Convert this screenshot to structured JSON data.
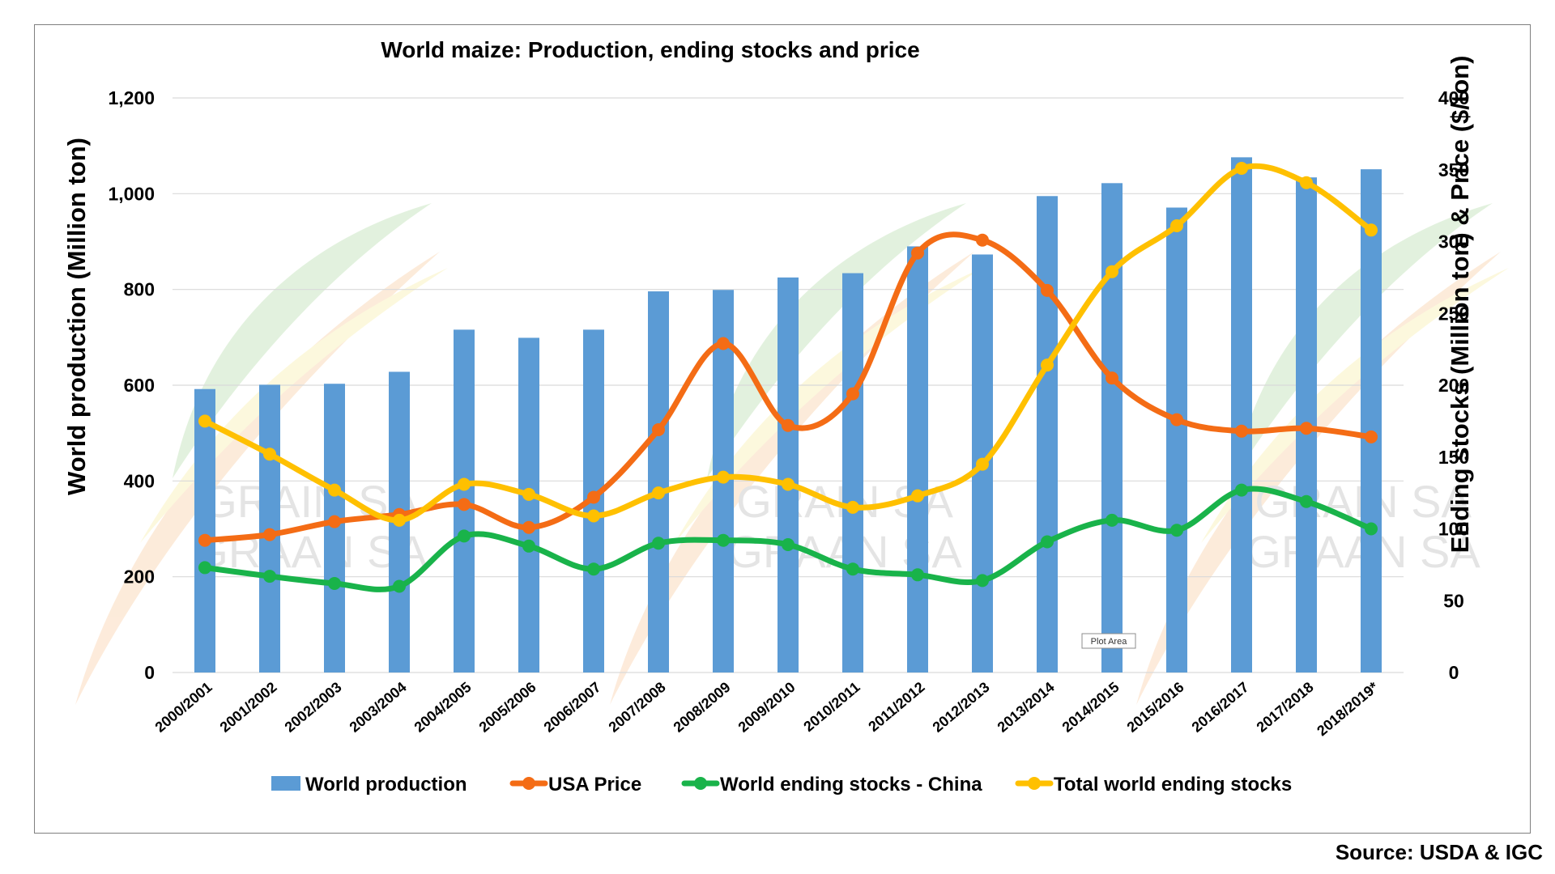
{
  "chart_data": {
    "type": "bar",
    "title": "World maize: Production, ending stocks and price",
    "ylabel_left": "World production (Million ton)",
    "ylabel_right": "Ending stocks (Million ton) & Price ($/ton)",
    "ylim_left": [
      0,
      1200
    ],
    "yticks_left": [
      0,
      200,
      400,
      600,
      800,
      1000,
      1200
    ],
    "ytick_labels_left": [
      "0",
      "200",
      "400",
      "600",
      "800",
      "1,000",
      "1,200"
    ],
    "ylim_right": [
      0,
      400
    ],
    "yticks_right": [
      0,
      50,
      100,
      150,
      200,
      250,
      300,
      350,
      400
    ],
    "ytick_labels_right": [
      "0",
      "50",
      "100",
      "150",
      "200",
      "250",
      "300",
      "350",
      "400"
    ],
    "grid": true,
    "legend_position": "bottom",
    "categories": [
      "2000/2001",
      "2001/2002",
      "2002/2003",
      "2003/2004",
      "2004/2005",
      "2005/2006",
      "2006/2007",
      "2007/2008",
      "2008/2009",
      "2009/2010",
      "2010/2011",
      "2011/2012",
      "2012/2013",
      "2013/2014",
      "2014/2015",
      "2015/2016",
      "2016/2017",
      "2017/2018",
      "2018/2019*"
    ],
    "series": [
      {
        "name": "World production",
        "type": "bar",
        "axis": "left",
        "color": "#5b9bd5",
        "values": [
          592,
          601,
          603,
          628,
          716,
          699,
          716,
          796,
          799,
          825,
          834,
          890,
          873,
          995,
          1022,
          971,
          1076,
          1034,
          1051
        ]
      },
      {
        "name": "USA Price",
        "type": "line",
        "axis": "right",
        "color": "#f46c15",
        "values": [
          92,
          96,
          105,
          110,
          117,
          101,
          122,
          169,
          229,
          172,
          194,
          292,
          301,
          266,
          205,
          176,
          168,
          170,
          164
        ]
      },
      {
        "name": "World ending stocks - China",
        "type": "line",
        "axis": "right",
        "color": "#19b34a",
        "values": [
          73,
          67,
          62,
          60,
          95,
          88,
          72,
          90,
          92,
          89,
          72,
          68,
          64,
          91,
          106,
          99,
          127,
          119,
          100
        ]
      },
      {
        "name": "Total world ending stocks",
        "type": "line",
        "axis": "right",
        "color": "#ffc000",
        "values": [
          175,
          152,
          127,
          106,
          131,
          124,
          109,
          125,
          136,
          131,
          115,
          123,
          145,
          214,
          279,
          311,
          351,
          341,
          308
        ]
      }
    ],
    "watermark_text": [
      "GRAIN SA",
      "GRAAN SA"
    ]
  },
  "plot_area_tooltip": "Plot Area",
  "source": "Source: USDA & IGC"
}
